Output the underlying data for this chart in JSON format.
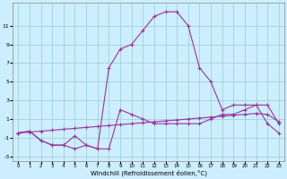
{
  "xlabel": "Windchill (Refroidissement éolien,°C)",
  "ylabel": "",
  "bg_color": "#cceeff",
  "grid_color": "#99cccc",
  "line_color": "#993399",
  "xlim": [
    -0.5,
    23.5
  ],
  "ylim": [
    -3.5,
    13.5
  ],
  "xticks": [
    0,
    1,
    2,
    3,
    4,
    5,
    6,
    7,
    8,
    9,
    10,
    11,
    12,
    13,
    14,
    15,
    16,
    17,
    18,
    19,
    20,
    21,
    22,
    23
  ],
  "yticks": [
    -3,
    -1,
    1,
    3,
    5,
    7,
    9,
    11
  ],
  "line1_x": [
    0,
    1,
    2,
    3,
    4,
    5,
    6,
    7,
    8,
    9,
    10,
    11,
    12,
    13,
    14,
    15,
    16,
    17,
    18,
    19,
    20,
    21,
    22,
    23
  ],
  "line1_y": [
    -0.5,
    -0.3,
    -1.3,
    -1.8,
    -1.8,
    -2.2,
    -1.8,
    -2.2,
    6.5,
    8.5,
    9.0,
    10.5,
    12.0,
    12.5,
    12.5,
    11.0,
    6.5,
    5.0,
    2.0,
    2.5,
    2.5,
    2.5,
    0.5,
    -0.5
  ],
  "line2_x": [
    0,
    1,
    2,
    3,
    4,
    5,
    6,
    7,
    8,
    9,
    10,
    11,
    12,
    13,
    14,
    15,
    16,
    17,
    18,
    19,
    20,
    21,
    22,
    23
  ],
  "line2_y": [
    -0.5,
    -0.3,
    -1.3,
    -1.8,
    -1.8,
    -0.8,
    -1.8,
    -2.2,
    -2.2,
    2.0,
    1.5,
    1.0,
    0.5,
    0.5,
    0.5,
    0.5,
    0.5,
    1.0,
    1.5,
    1.5,
    2.0,
    2.5,
    2.5,
    0.5
  ],
  "line3_x": [
    0,
    1,
    2,
    3,
    4,
    5,
    6,
    7,
    8,
    9,
    10,
    11,
    12,
    13,
    14,
    15,
    16,
    17,
    18,
    19,
    20,
    21,
    22,
    23
  ],
  "line3_y": [
    -0.5,
    -0.4,
    -0.3,
    -0.2,
    -0.1,
    0.0,
    0.1,
    0.2,
    0.3,
    0.4,
    0.5,
    0.6,
    0.7,
    0.8,
    0.9,
    1.0,
    1.1,
    1.2,
    1.3,
    1.4,
    1.5,
    1.6,
    1.5,
    0.7
  ]
}
